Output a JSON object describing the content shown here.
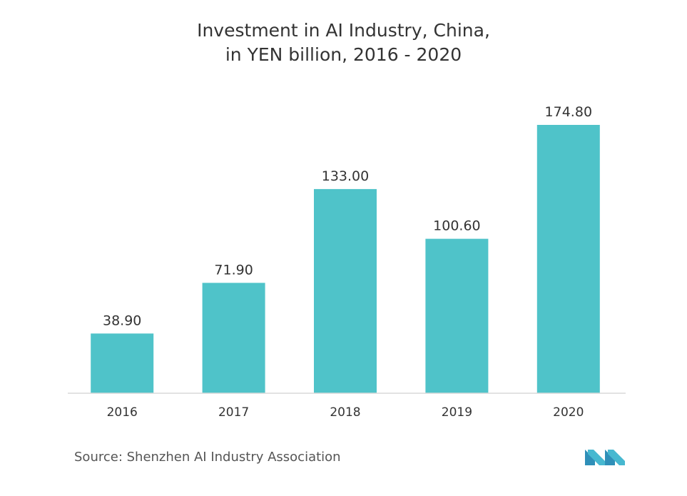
{
  "title_line1": "Investment in AI Industry, China,",
  "title_line2": "in YEN billion, 2016 - 2020",
  "source": "Source: Shenzhen AI Industry Association",
  "logo_name": "mordor-intelligence-logo",
  "colors": {
    "bar": "#4fc3c9",
    "axis": "#d9d9d9",
    "label": "#333333",
    "logo": "#3aa6c9"
  },
  "chart_data": {
    "type": "bar",
    "title": "Investment in AI Industry, China, in YEN billion, 2016 - 2020",
    "categories": [
      "2016",
      "2017",
      "2018",
      "2019",
      "2020"
    ],
    "values": [
      38.9,
      71.9,
      133.0,
      100.6,
      174.8
    ],
    "value_labels": [
      "38.90",
      "71.90",
      "133.00",
      "100.60",
      "174.80"
    ],
    "xlabel": "",
    "ylabel": "",
    "ylim": [
      0,
      180
    ],
    "grid": false,
    "legend": "none"
  }
}
